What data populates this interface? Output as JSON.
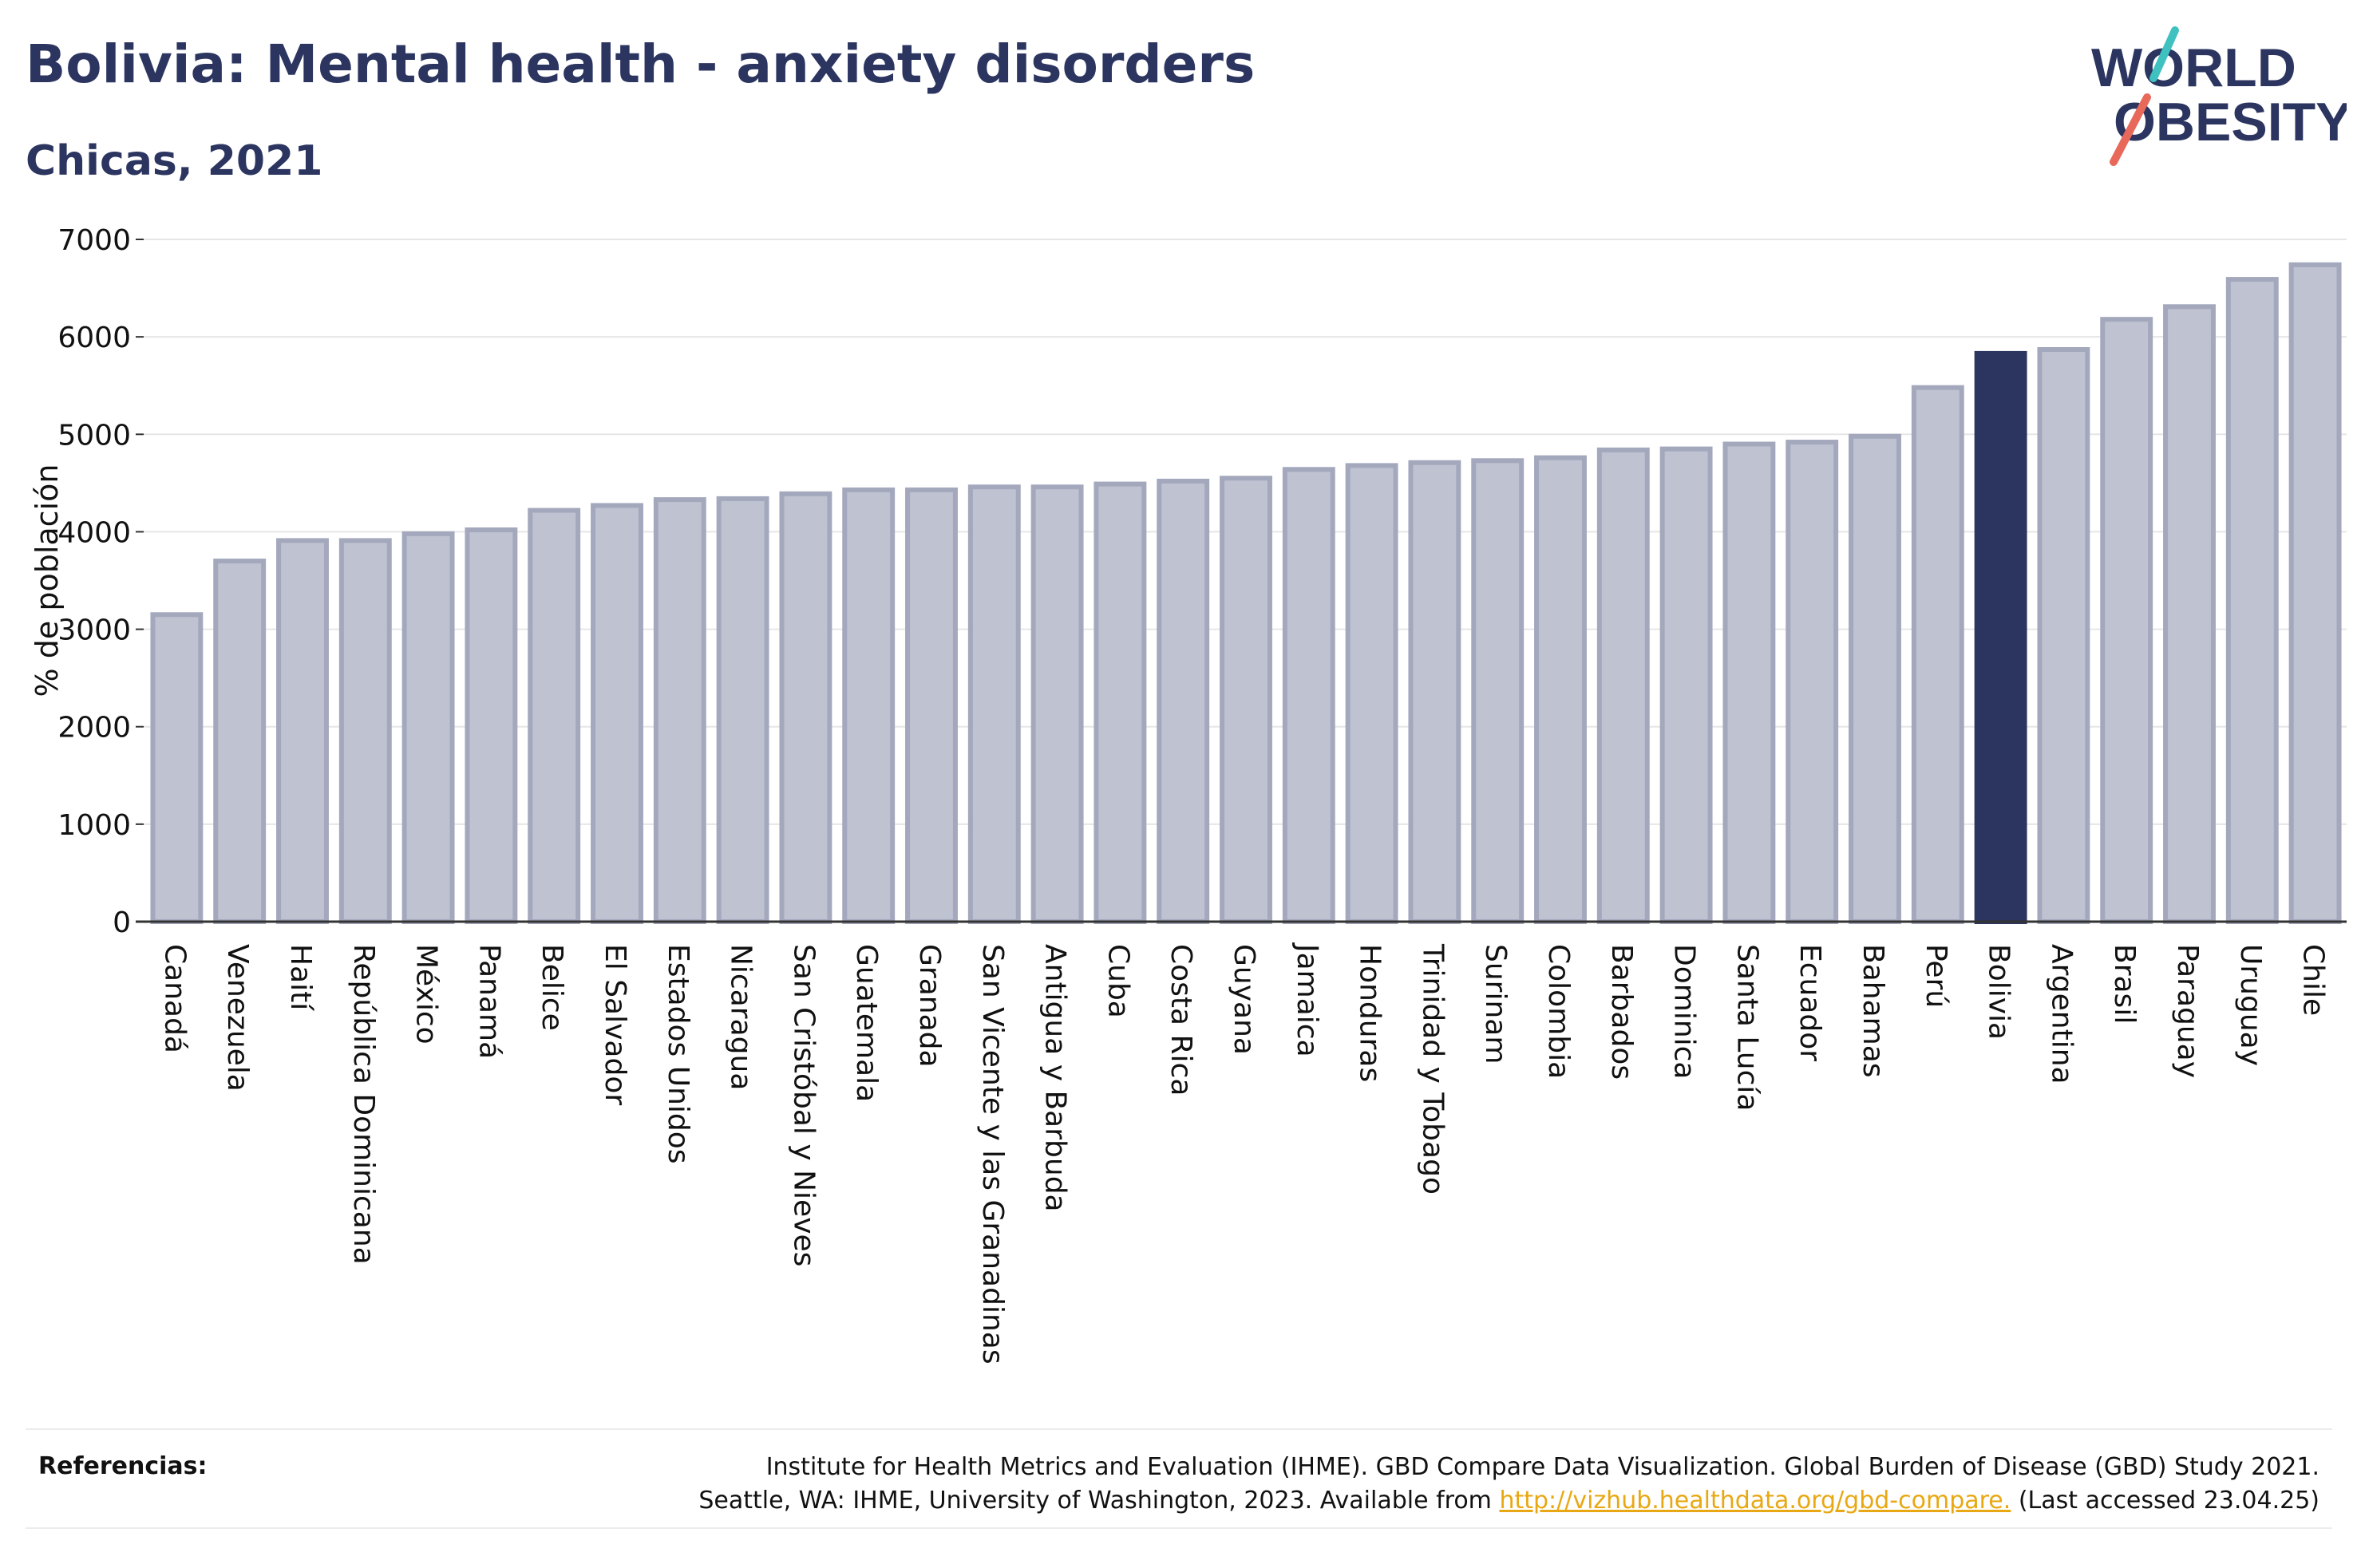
{
  "header": {
    "title": "Bolivia: Mental health - anxiety disorders",
    "subtitle": "Chicas, 2021"
  },
  "logo": {
    "line1": "WORLD",
    "line2": "OBESITY"
  },
  "references": {
    "label": "Referencias:",
    "line1": "Institute for Health Metrics and Evaluation (IHME). GBD Compare Data Visualization. Global Burden of Disease (GBD) Study 2021.",
    "line2_prefix": "Seattle, WA: IHME, University of Washington, 2023. Available from ",
    "link": "http://vizhub.healthdata.org/gbd-compare.",
    "line2_suffix": " (Last accessed 23.04.25)"
  },
  "colors": {
    "bar": "#bfc2d0",
    "bar_border": "#a3a8bd",
    "highlight": "#2b3560",
    "grid": "#e6e6e6",
    "text": "#111111",
    "brand": "#2b3560",
    "logo_red": "#e8695a",
    "logo_teal": "#3fc1c0",
    "link": "#e8a813"
  },
  "chart_data": {
    "type": "bar",
    "ylabel": "% de población",
    "xlabel": "",
    "ylim": [
      0,
      7000
    ],
    "yticks": [
      0,
      1000,
      2000,
      3000,
      4000,
      5000,
      6000,
      7000
    ],
    "grid": true,
    "highlight": "Bolivia",
    "categories": [
      "Canadá",
      "Venezuela",
      "Haití",
      "República Dominicana",
      "México",
      "Panamá",
      "Belice",
      "El Salvador",
      "Estados Unidos",
      "Nicaragua",
      "San Cristóbal y Nieves",
      "Guatemala",
      "Granada",
      "San Vicente y las Granadinas",
      "Antigua y Barbuda",
      "Cuba",
      "Costa Rica",
      "Guyana",
      "Jamaica",
      "Honduras",
      "Trinidad y Tobago",
      "Surinam",
      "Colombia",
      "Barbados",
      "Dominica",
      "Santa Lucía",
      "Ecuador",
      "Bahamas",
      "Perú",
      "Bolivia",
      "Argentina",
      "Brasil",
      "Paraguay",
      "Uruguay",
      "Chile"
    ],
    "values": [
      3150,
      3700,
      3910,
      3910,
      3980,
      4020,
      4220,
      4270,
      4330,
      4340,
      4390,
      4430,
      4430,
      4460,
      4460,
      4490,
      4520,
      4550,
      4640,
      4680,
      4710,
      4730,
      4760,
      4840,
      4850,
      4900,
      4920,
      4980,
      5480,
      5830,
      5870,
      6180,
      6310,
      6590,
      6740
    ]
  }
}
